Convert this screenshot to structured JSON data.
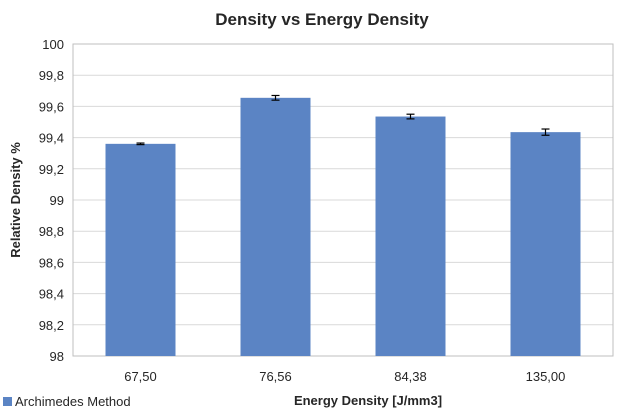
{
  "chart_data": {
    "type": "bar",
    "title": "Density vs Energy Density",
    "xlabel": "Energy Density [J/mm3]",
    "ylabel": "Relative Density %",
    "categories": [
      "67,50",
      "76,56",
      "84,38",
      "135,00"
    ],
    "series": [
      {
        "name": "Archimedes Method",
        "values": [
          99.36,
          99.655,
          99.535,
          99.435
        ],
        "errors": [
          0.005,
          0.015,
          0.015,
          0.02
        ],
        "color": "#5b84c4"
      }
    ],
    "ylim": [
      98,
      100
    ],
    "yticks": [
      98,
      98.2,
      98.4,
      98.6,
      98.8,
      99,
      99.2,
      99.4,
      99.6,
      99.8,
      100
    ],
    "ytick_labels": [
      "98",
      "98,2",
      "98,4",
      "98,6",
      "98,8",
      "99",
      "99,2",
      "99,4",
      "99,6",
      "99,8",
      "100"
    ],
    "grid": true,
    "legend_position": "bottom-left"
  }
}
